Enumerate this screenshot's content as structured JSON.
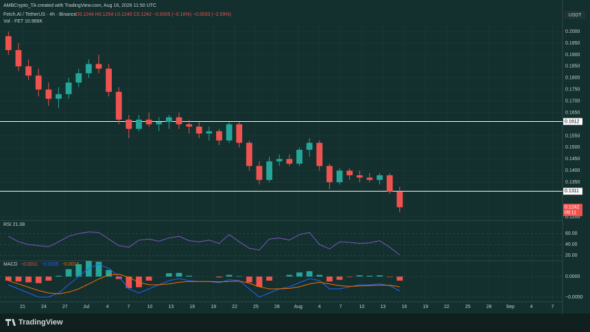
{
  "header": {
    "attribution": "AMBCrypto_TA created with TradingView.com, Aug 16, 2026 11:50 UTC",
    "symbol": "Fetch.AI / TetherUS · 4h · Binance",
    "ohlc": "O0.1244 H0.1254 L0.1240 C0.1242 −0.0005 (−0.16%) −0.0033 (−2.59%)",
    "volume": "Vol · FET 10.966K",
    "currency": "USDT",
    "countdown": "09:11"
  },
  "footer": {
    "logo": "TradingView"
  },
  "time_axis": [
    "21",
    "24",
    "27",
    "Jul",
    "4",
    "7",
    "10",
    "13",
    "16",
    "19",
    "22",
    "25",
    "28",
    "Aug",
    "4",
    "7",
    "10",
    "13",
    "16",
    "19",
    "22",
    "25",
    "28",
    "Sep",
    "4",
    "7"
  ],
  "chart_data": [
    {
      "type": "candlestick",
      "up_color": "#26a69a",
      "down_color": "#ef5350",
      "open": [
        0.198,
        0.192,
        0.185,
        0.181,
        0.175,
        0.171,
        0.173,
        0.178,
        0.182,
        0.186,
        0.184,
        0.174,
        0.162,
        0.158,
        0.162,
        0.16,
        0.161,
        0.163,
        0.16,
        0.159,
        0.156,
        0.157,
        0.153,
        0.16,
        0.152,
        0.142,
        0.136,
        0.144,
        0.145,
        0.143,
        0.149,
        0.152,
        0.142,
        0.135,
        0.14,
        0.138,
        0.137,
        0.136,
        0.138,
        0.131
      ],
      "high": [
        0.2,
        0.195,
        0.188,
        0.184,
        0.178,
        0.176,
        0.18,
        0.184,
        0.188,
        0.19,
        0.186,
        0.176,
        0.164,
        0.164,
        0.165,
        0.163,
        0.164,
        0.165,
        0.162,
        0.161,
        0.159,
        0.158,
        0.161,
        0.161,
        0.153,
        0.144,
        0.146,
        0.147,
        0.147,
        0.15,
        0.154,
        0.153,
        0.143,
        0.141,
        0.141,
        0.14,
        0.139,
        0.139,
        0.139,
        0.133
      ],
      "low": [
        0.19,
        0.183,
        0.179,
        0.172,
        0.168,
        0.167,
        0.171,
        0.176,
        0.18,
        0.182,
        0.172,
        0.16,
        0.154,
        0.157,
        0.159,
        0.157,
        0.158,
        0.158,
        0.156,
        0.154,
        0.153,
        0.151,
        0.152,
        0.15,
        0.14,
        0.134,
        0.135,
        0.142,
        0.142,
        0.142,
        0.146,
        0.14,
        0.132,
        0.134,
        0.136,
        0.135,
        0.135,
        0.134,
        0.13,
        0.122
      ],
      "close": [
        0.192,
        0.185,
        0.181,
        0.175,
        0.171,
        0.173,
        0.178,
        0.182,
        0.186,
        0.184,
        0.174,
        0.162,
        0.158,
        0.162,
        0.16,
        0.161,
        0.163,
        0.16,
        0.159,
        0.156,
        0.157,
        0.153,
        0.16,
        0.152,
        0.142,
        0.136,
        0.144,
        0.145,
        0.143,
        0.149,
        0.152,
        0.142,
        0.135,
        0.14,
        0.138,
        0.137,
        0.136,
        0.138,
        0.131,
        0.1242
      ],
      "levels": [
        0.1612,
        0.1311
      ],
      "ylim": [
        0.1197,
        0.2018
      ],
      "yticks": [
        {
          "value": 0.2,
          "label": "0.2000"
        },
        {
          "value": 0.195,
          "label": "0.1950"
        },
        {
          "value": 0.19,
          "label": "0.1900"
        },
        {
          "value": 0.185,
          "label": "0.1850"
        },
        {
          "value": 0.18,
          "label": "0.1800"
        },
        {
          "value": 0.175,
          "label": "0.1750"
        },
        {
          "value": 0.17,
          "label": "0.1700"
        },
        {
          "value": 0.165,
          "label": "0.1650"
        },
        {
          "value": 0.155,
          "label": "0.1550"
        },
        {
          "value": 0.15,
          "label": "0.1500"
        },
        {
          "value": 0.145,
          "label": "0.1450"
        },
        {
          "value": 0.14,
          "label": "0.1400"
        },
        {
          "value": 0.135,
          "label": "0.1350"
        },
        {
          "value": 0.12,
          "label": "0.1200"
        }
      ]
    },
    {
      "type": "line",
      "title": "RSI 21.08",
      "ylim": [
        14,
        74
      ],
      "yticks": [
        {
          "value": 60,
          "label": "60.00"
        },
        {
          "value": 40,
          "label": "40.00"
        },
        {
          "value": 20,
          "label": "20.00"
        }
      ],
      "series": [
        {
          "name": "RSI",
          "color": "#7e57c2",
          "values": [
            55,
            45,
            40,
            38,
            36,
            45,
            55,
            60,
            63,
            62,
            50,
            38,
            35,
            48,
            50,
            46,
            52,
            55,
            47,
            45,
            48,
            42,
            58,
            45,
            33,
            30,
            50,
            52,
            48,
            58,
            62,
            40,
            32,
            45,
            44,
            42,
            43,
            47,
            35,
            21
          ]
        }
      ]
    },
    {
      "type": "macd",
      "title": "MACD",
      "readouts": [
        {
          "text": "−0.0011",
          "color": "#ef5350"
        },
        {
          "text": "−0.0025",
          "color": "#2962ff"
        },
        {
          "text": "−0.0016",
          "color": "#ff6d00"
        }
      ],
      "up_color": "#26a69a",
      "down_color": "#ef5350",
      "ylim": [
        -0.006,
        0.0035
      ],
      "yticks": [
        {
          "value": 0,
          "label": "0.0000"
        },
        {
          "value": -0.005,
          "label": "−0.0050"
        }
      ],
      "histogram": [
        -0.001,
        -0.0012,
        -0.0014,
        -0.0016,
        -0.001,
        0.0002,
        0.0018,
        0.003,
        0.0038,
        0.0036,
        0.0016,
        -0.0006,
        -0.0028,
        -0.0026,
        -0.001,
        0,
        0.0008,
        0.0009,
        0.0002,
        0,
        0,
        -0.0002,
        0.0004,
        0.0001,
        -0.0014,
        -0.0025,
        -0.001,
        0,
        0.0004,
        0.001,
        0.0013,
        0.0004,
        -0.0012,
        -0.0008,
        -0.0001,
        0.0003,
        0.0002,
        0.0003,
        -0.0001,
        -0.001
      ],
      "series": [
        {
          "name": "MACD",
          "color": "#2962ff",
          "values": [
            -0.002,
            -0.003,
            -0.004,
            -0.005,
            -0.005,
            -0.004,
            -0.002,
            0,
            0.002,
            0.003,
            0.002,
            0,
            -0.003,
            -0.004,
            -0.003,
            -0.002,
            -0.001,
            -0.0005,
            -0.001,
            -0.0012,
            -0.0012,
            -0.0015,
            -0.0008,
            -0.001,
            -0.003,
            -0.005,
            -0.004,
            -0.003,
            -0.0025,
            -0.0015,
            -0.0005,
            -0.001,
            -0.003,
            -0.003,
            -0.0025,
            -0.002,
            -0.002,
            -0.0018,
            -0.0022,
            -0.0035
          ]
        },
        {
          "name": "Signal",
          "color": "#ff6d00",
          "values": [
            -0.001,
            -0.0018,
            -0.0026,
            -0.0034,
            -0.004,
            -0.0042,
            -0.0038,
            -0.003,
            -0.0018,
            -0.0006,
            0.0004,
            0.0006,
            -0.0002,
            -0.0014,
            -0.002,
            -0.002,
            -0.0018,
            -0.0014,
            -0.0012,
            -0.0012,
            -0.0012,
            -0.0013,
            -0.0012,
            -0.0011,
            -0.0016,
            -0.0025,
            -0.003,
            -0.003,
            -0.0029,
            -0.0025,
            -0.0018,
            -0.0014,
            -0.0018,
            -0.0022,
            -0.0024,
            -0.0023,
            -0.0022,
            -0.0021,
            -0.0021,
            -0.0025
          ]
        }
      ]
    }
  ]
}
